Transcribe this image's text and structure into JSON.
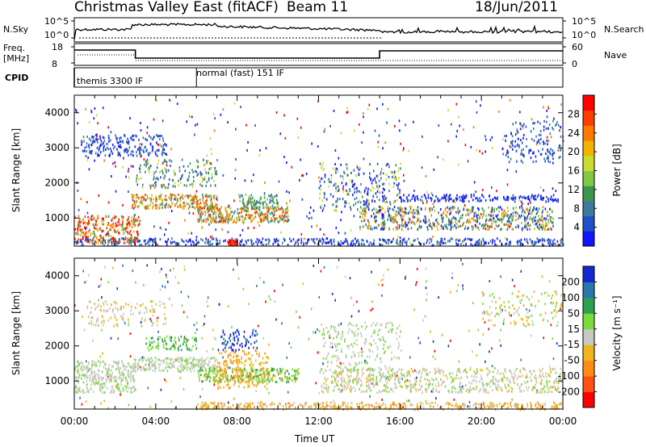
{
  "header": {
    "station": "Christmas Valley East (fitACF)",
    "beam": "Beam 11",
    "date": "18/Jun/2011"
  },
  "status_panels": {
    "nsky_label": "N.Sky",
    "nsearch_label": "N.Search",
    "noise_ticks_left": [
      "10^5",
      "10^0"
    ],
    "noise_ticks_right": [
      "10^5",
      "10^0"
    ],
    "freq_label_line1": "Freq.",
    "freq_label_line2": "[MHz]",
    "freq_ticks": [
      "18",
      "8"
    ],
    "nave_label": "Nave",
    "nave_ticks": [
      "60",
      "0"
    ],
    "cpid_label": "CPID",
    "cpid_modes": [
      "themis 3300 IF",
      "normal (fast) 151 IF"
    ]
  },
  "chart_data": [
    {
      "type": "heatmap",
      "name": "power",
      "ylabel": "Slant Range [km]",
      "yticks": [
        "1000",
        "2000",
        "3000",
        "4000"
      ],
      "ylim": [
        200,
        4500
      ],
      "xlim": [
        0,
        24
      ],
      "colorbar": {
        "label": "Power [dB]",
        "ticks": [
          "4",
          "8",
          "12",
          "16",
          "20",
          "24",
          "28"
        ],
        "colors": [
          "#1414ff",
          "#2050c8",
          "#3c78a0",
          "#3c9650",
          "#82c846",
          "#c8dc32",
          "#f0b400",
          "#ff7800",
          "#ff3c00",
          "#ff0000"
        ]
      }
    },
    {
      "type": "heatmap",
      "name": "velocity",
      "ylabel": "Slant Range [km]",
      "yticks": [
        "1000",
        "2000",
        "3000",
        "4000"
      ],
      "ylim": [
        200,
        4500
      ],
      "xlim": [
        0,
        24
      ],
      "xlabel": "Time UT",
      "xticks": [
        "00:00",
        "04:00",
        "08:00",
        "12:00",
        "16:00",
        "20:00",
        "00:00"
      ],
      "colorbar": {
        "label": "Velocity [m s⁻¹]",
        "ticks": [
          "200",
          "100",
          "50",
          "15",
          "-15",
          "-50",
          "-100",
          "-200"
        ],
        "colors": [
          "#1428d2",
          "#2878aa",
          "#2ea050",
          "#78dc3c",
          "#c8c8c0",
          "#f0b41e",
          "#ff8c14",
          "#ff5014",
          "#ff0000"
        ]
      }
    }
  ]
}
